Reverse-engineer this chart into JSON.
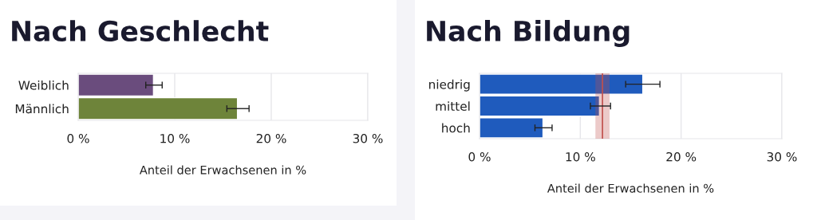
{
  "chart_data": [
    {
      "type": "bar",
      "orientation": "horizontal",
      "title": "Nach Geschlecht",
      "xlabel": "Anteil der Erwachsenen in %",
      "categories": [
        "Weiblich",
        "Männlich"
      ],
      "values": [
        7.8,
        16.5
      ],
      "colors": [
        "#6a4c7d",
        "#6e843a"
      ],
      "errors": [
        [
          7.0,
          8.7
        ],
        [
          15.4,
          17.7
        ]
      ],
      "xlim": [
        0,
        30
      ],
      "xticks": [
        {
          "value": 0,
          "label": "0 %"
        },
        {
          "value": 10,
          "label": "10 %"
        },
        {
          "value": 20,
          "label": "20 %"
        },
        {
          "value": 30,
          "label": "30 %"
        }
      ],
      "grid": "x"
    },
    {
      "type": "bar",
      "orientation": "horizontal",
      "title": "Nach Bildung",
      "xlabel": "Anteil der Erwachsenen in %",
      "categories": [
        "niedrig",
        "mittel",
        "hoch"
      ],
      "values": [
        16.2,
        11.9,
        6.3
      ],
      "colors": [
        "#1f5bbd",
        "#1f5bbd",
        "#1f5bbd"
      ],
      "errors": [
        [
          14.5,
          17.9
        ],
        [
          11.0,
          13.0
        ],
        [
          5.5,
          7.2
        ]
      ],
      "ref_lines": [
        {
          "axis": "x",
          "value": 12.2,
          "color": "#c0504d"
        }
      ],
      "bands": [
        {
          "axis": "x",
          "from": 11.5,
          "to": 12.9,
          "color": "#c0504d"
        }
      ],
      "xlim": [
        0,
        30
      ],
      "xticks": [
        {
          "value": 0,
          "label": "0 %"
        },
        {
          "value": 10,
          "label": "10 %"
        },
        {
          "value": 20,
          "label": "20 %"
        },
        {
          "value": 30,
          "label": "30 %"
        }
      ],
      "grid": "x"
    }
  ]
}
